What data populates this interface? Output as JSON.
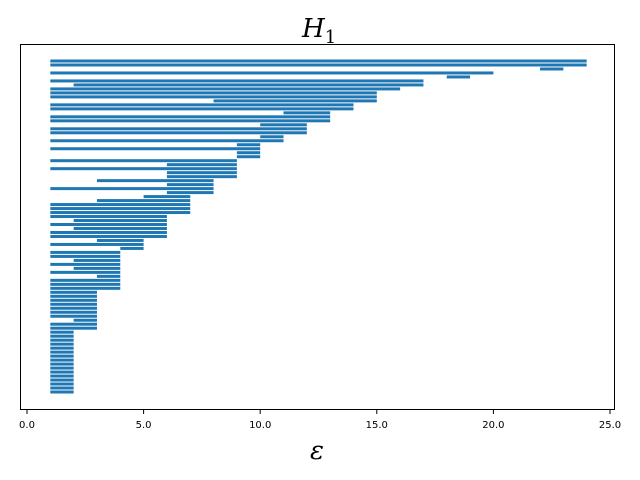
{
  "chart_data": {
    "type": "barcode",
    "title": "H",
    "title_subscript": "1",
    "xlabel": "ε",
    "ylabel": "",
    "xlim": [
      0,
      25
    ],
    "xticks": [
      0,
      5,
      10,
      15,
      20,
      25
    ],
    "xtick_labels": [
      "0.0",
      "5.0",
      "10.0",
      "15.0",
      "20.0",
      "25.0"
    ],
    "yticks": [],
    "grid": false,
    "color": "#1f77b4",
    "intervals": [
      [
        1,
        24
      ],
      [
        1,
        24
      ],
      [
        22,
        23
      ],
      [
        1,
        20
      ],
      [
        18,
        19
      ],
      [
        1,
        17
      ],
      [
        2,
        17
      ],
      [
        1,
        16
      ],
      [
        1,
        15
      ],
      [
        1,
        15
      ],
      [
        8,
        15
      ],
      [
        1,
        14
      ],
      [
        1,
        14
      ],
      [
        11,
        13
      ],
      [
        1,
        13
      ],
      [
        1,
        13
      ],
      [
        10,
        12
      ],
      [
        1,
        12
      ],
      [
        1,
        12
      ],
      [
        10,
        11
      ],
      [
        1,
        11
      ],
      [
        9,
        10
      ],
      [
        1,
        10
      ],
      [
        9,
        10
      ],
      [
        9,
        10
      ],
      [
        1,
        9
      ],
      [
        6,
        9
      ],
      [
        1,
        9
      ],
      [
        6,
        9
      ],
      [
        6,
        9
      ],
      [
        3,
        8
      ],
      [
        6,
        8
      ],
      [
        1,
        8
      ],
      [
        6,
        8
      ],
      [
        5,
        7
      ],
      [
        3,
        7
      ],
      [
        1,
        7
      ],
      [
        1,
        7
      ],
      [
        1,
        7
      ],
      [
        1,
        6
      ],
      [
        2,
        6
      ],
      [
        1,
        6
      ],
      [
        2,
        6
      ],
      [
        1,
        6
      ],
      [
        1,
        6
      ],
      [
        3,
        5
      ],
      [
        1,
        5
      ],
      [
        4,
        5
      ],
      [
        1,
        4
      ],
      [
        1,
        4
      ],
      [
        2,
        4
      ],
      [
        1,
        4
      ],
      [
        2,
        4
      ],
      [
        1,
        4
      ],
      [
        3,
        4
      ],
      [
        1,
        4
      ],
      [
        1,
        4
      ],
      [
        1,
        4
      ],
      [
        1,
        3
      ],
      [
        1,
        3
      ],
      [
        1,
        3
      ],
      [
        1,
        3
      ],
      [
        1,
        3
      ],
      [
        1,
        3
      ],
      [
        1,
        3
      ],
      [
        2,
        3
      ],
      [
        1,
        3
      ],
      [
        1,
        3
      ],
      [
        1,
        2
      ],
      [
        1,
        2
      ],
      [
        1,
        2
      ],
      [
        1,
        2
      ],
      [
        1,
        2
      ],
      [
        1,
        2
      ],
      [
        1,
        2
      ],
      [
        1,
        2
      ],
      [
        1,
        2
      ],
      [
        1,
        2
      ],
      [
        1,
        2
      ],
      [
        1,
        2
      ],
      [
        1,
        2
      ],
      [
        1,
        2
      ],
      [
        1,
        2
      ],
      [
        1,
        2
      ]
    ]
  }
}
